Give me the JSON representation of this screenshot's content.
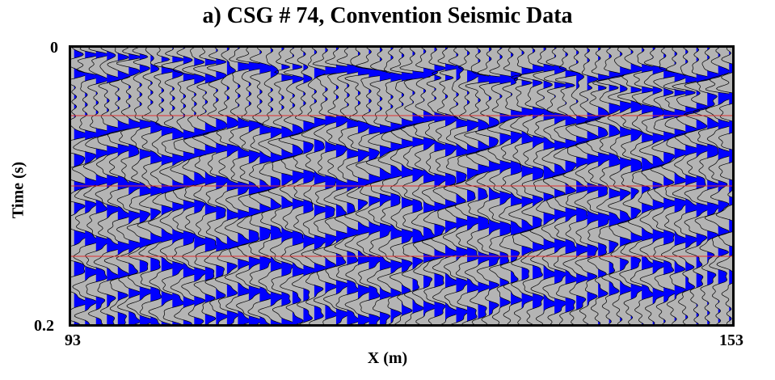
{
  "chart_data": {
    "type": "seismic-wiggle",
    "title": "a) CSG # 74, Convention Seismic Data",
    "xlabel": "X (m)",
    "ylabel": "Time (s)",
    "xlim": [
      93,
      153
    ],
    "ylim": [
      0,
      0.2
    ],
    "x_tick_labels": [
      "93",
      "153"
    ],
    "y_tick_labels": [
      "0",
      "0.2"
    ],
    "y_reversed": true,
    "trace_count": 61,
    "time_markers_s": [
      0.05,
      0.1,
      0.15
    ],
    "colors": {
      "background": "#b4b4b4",
      "positive_fill": "#0000ff",
      "wiggle": "#000000",
      "time_marker": "#e03030",
      "frame": "#000000"
    }
  }
}
